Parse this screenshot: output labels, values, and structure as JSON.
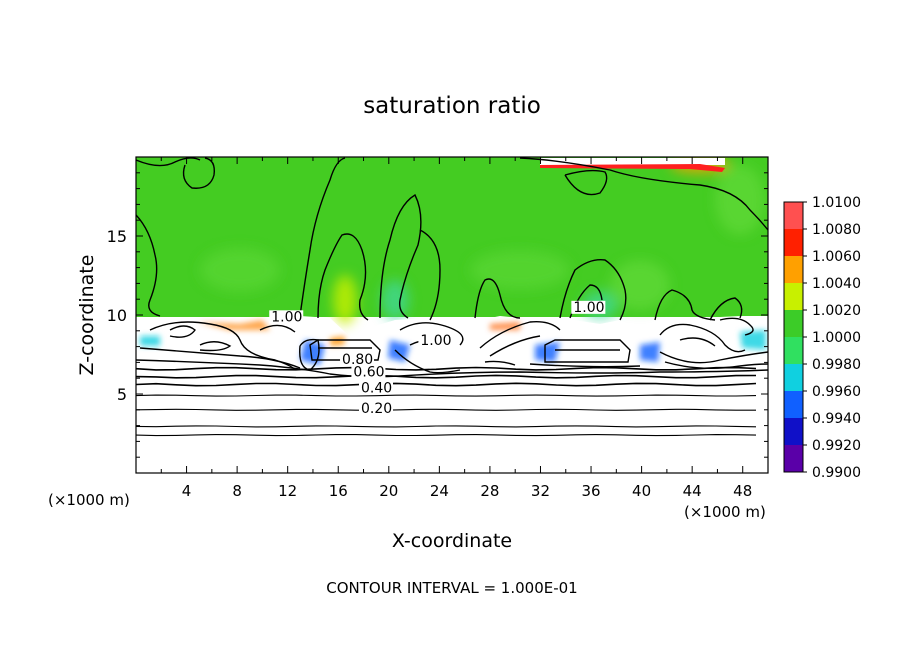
{
  "chart_data": {
    "type": "heatmap",
    "title": "saturation ratio",
    "xlabel": "X-coordinate",
    "ylabel": "Z-coordinate",
    "x_unit": "(×1000 m)",
    "x_unit_right": "(×1000 m)",
    "footer": "CONTOUR INTERVAL = 1.000E-01",
    "xlim": [
      0,
      50
    ],
    "ylim": [
      0,
      20
    ],
    "x_ticks": [
      4,
      8,
      12,
      16,
      20,
      24,
      28,
      32,
      36,
      40,
      44,
      48
    ],
    "y_ticks": [
      5,
      10,
      15
    ],
    "colorbar": {
      "levels": [
        "0.9900",
        "0.9920",
        "0.9940",
        "0.9960",
        "0.9980",
        "1.0000",
        "1.0020",
        "1.0040",
        "1.0060",
        "1.0080",
        "1.0100"
      ],
      "colors": [
        "#5a00a8",
        "#1010c8",
        "#1060ff",
        "#10d0e0",
        "#30e060",
        "#3ccc28",
        "#c8f000",
        "#ffa000",
        "#ff2000",
        "#ff5050",
        "#ff9aa0"
      ]
    },
    "field": {
      "background_value": 1.0,
      "background_color": "#44cc22",
      "unsaturated_below_km": 10
    },
    "contour_labels": [
      {
        "text": "1.00",
        "x": 10.7,
        "z": 9.6
      },
      {
        "text": "1.00",
        "x": 22.5,
        "z": 8.1
      },
      {
        "text": "1.00",
        "x": 34.6,
        "z": 10.2
      },
      {
        "text": "0.80",
        "x": 16.3,
        "z": 6.9
      },
      {
        "text": "0.60",
        "x": 17.2,
        "z": 6.1
      },
      {
        "text": "0.40",
        "x": 17.8,
        "z": 5.1
      },
      {
        "text": "0.20",
        "x": 17.8,
        "z": 3.8
      }
    ],
    "flat_contours_z": [
      2.4,
      2.95,
      4.0,
      4.9,
      5.6,
      6.1,
      6.6
    ]
  }
}
